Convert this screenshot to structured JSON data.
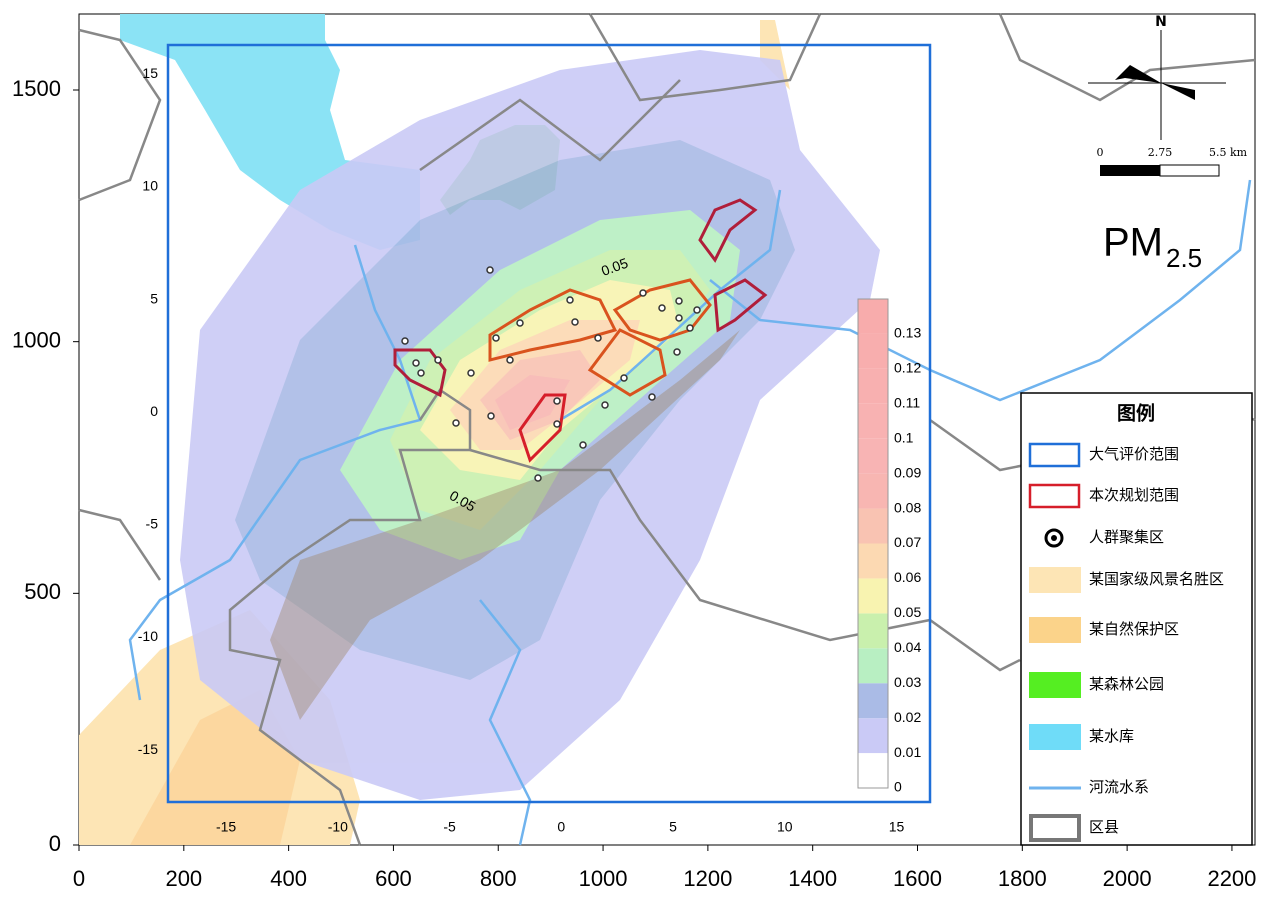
{
  "map": {
    "title": {
      "main": "PM",
      "sub": "2.5"
    },
    "north": "N",
    "scale_bar": {
      "ticks": [
        "0",
        "2.75",
        "5.5 km"
      ]
    },
    "outer_axes": {
      "xlim": [
        0,
        2244
      ],
      "ylim": [
        0,
        1651
      ],
      "xticks": [
        0,
        200,
        400,
        600,
        800,
        1000,
        1200,
        1400,
        1600,
        1800,
        2000,
        2200
      ],
      "yticks": [
        0,
        500,
        1000,
        1500
      ]
    },
    "inner_axes": {
      "xlim": [
        -17.6,
        16.5
      ],
      "ylim": [
        -17.3,
        16.3
      ],
      "xticks": [
        -15,
        -10,
        -5,
        0,
        5,
        10,
        15
      ],
      "yticks": [
        15,
        10,
        5,
        0,
        -5,
        -10,
        -15
      ]
    },
    "contour_labels": [
      "0.05",
      "0.05"
    ],
    "colorbar": {
      "lim": [
        0,
        0.14
      ],
      "levels": [
        0,
        0.01,
        0.02,
        0.03,
        0.04,
        0.05,
        0.06,
        0.07,
        0.08,
        0.09,
        0.1,
        0.11,
        0.12,
        0.13
      ],
      "colors": [
        "#ffffff",
        "#cacaf6",
        "#aabbe6",
        "#b8efc2",
        "#c9f0ad",
        "#f8f3b0",
        "#fcd9b2",
        "#f9c3b2",
        "#f8b6b2",
        "#f8b4b4",
        "#f8b2b2",
        "#f8b0b0",
        "#f8aeae",
        "#f8acac"
      ]
    },
    "legend": {
      "title": "图例",
      "items": [
        "大气评价范围",
        "本次规划范围",
        "人群聚集区",
        "某国家级风景名胜区",
        "某自然保护区",
        "某森林公园",
        "某水库",
        "河流水系",
        "区县"
      ]
    }
  }
}
